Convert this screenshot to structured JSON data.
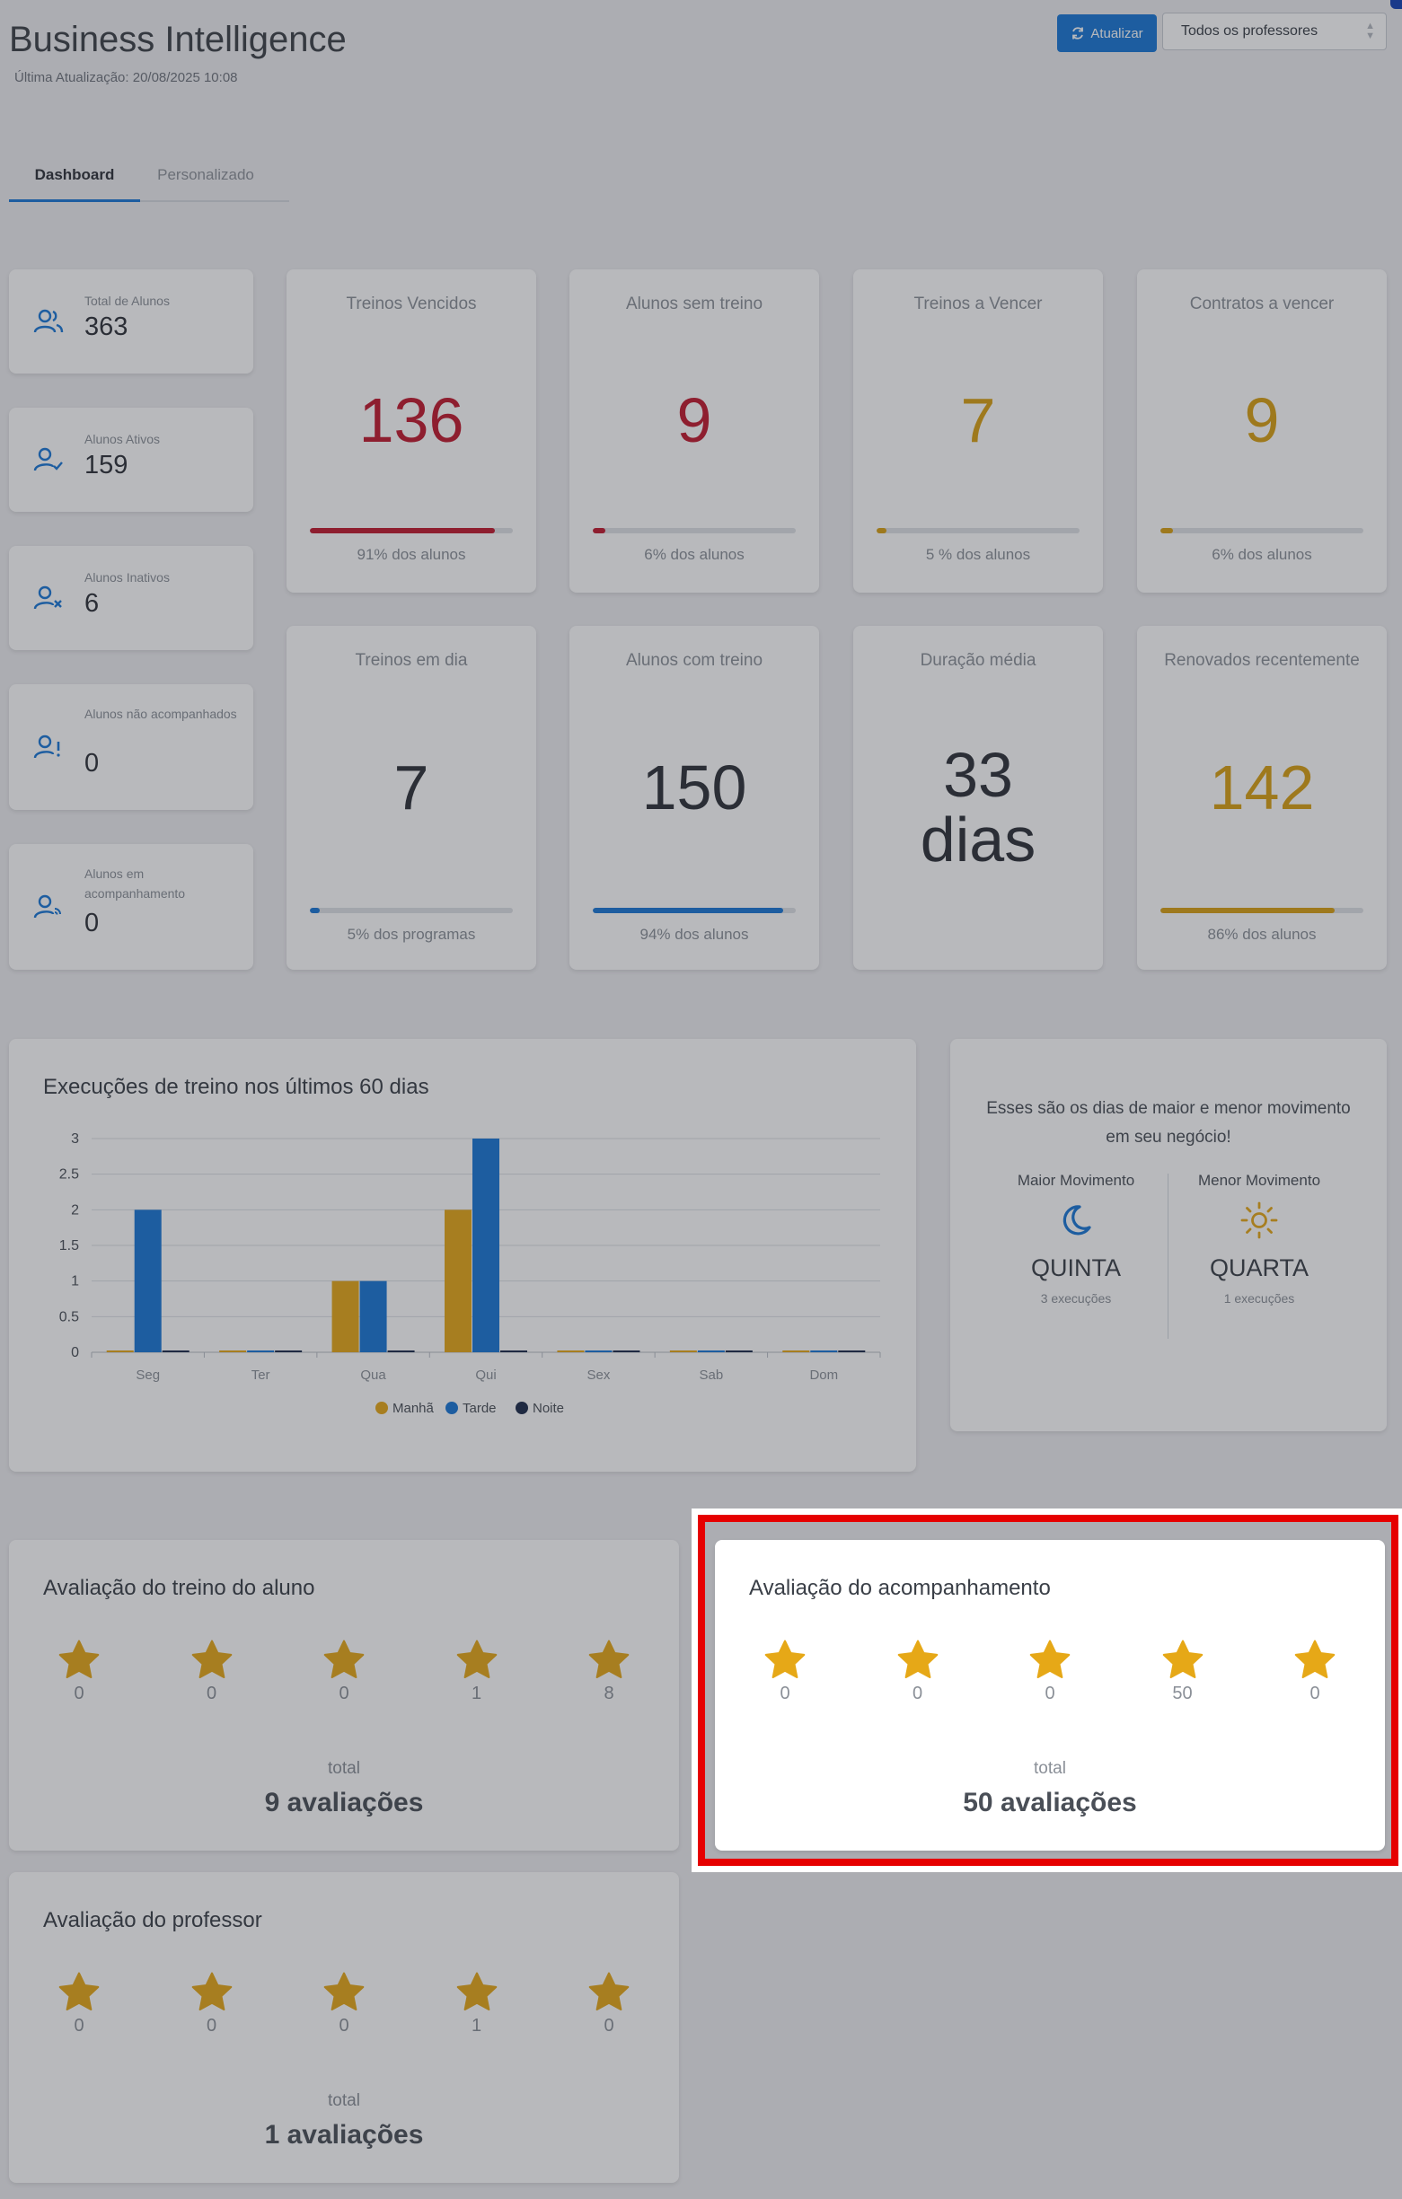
{
  "header": {
    "title": "Business Intelligence",
    "last_update": "Última Atualização: 20/08/2025 10:08",
    "refresh_label": "Atualizar",
    "professor_select": "Todos os professores"
  },
  "tabs": [
    {
      "label": "Dashboard",
      "active": true
    },
    {
      "label": "Personalizado",
      "active": false
    }
  ],
  "summary": [
    {
      "label": "Total de Alunos",
      "value": "363",
      "icon": "users-icon"
    },
    {
      "label": "Alunos Ativos",
      "value": "159",
      "icon": "user-check-icon"
    },
    {
      "label": "Alunos Inativos",
      "value": "6",
      "icon": "user-x-icon"
    },
    {
      "label": "Alunos não acompanhados",
      "value": "0",
      "icon": "user-alert-icon"
    },
    {
      "label": "Alunos em acompanhamento",
      "value": "0",
      "icon": "user-signal-icon"
    }
  ],
  "kpis": [
    {
      "title": "Treinos Vencidos",
      "value": "136",
      "footer": "91% dos alunos",
      "progress": 0.91,
      "color": "#c0182e"
    },
    {
      "title": "Alunos sem treino",
      "value": "9",
      "footer": "6% dos alunos",
      "progress": 0.06,
      "color": "#c0182e"
    },
    {
      "title": "Treinos a Vencer",
      "value": "7",
      "footer": "5 % dos alunos",
      "progress": 0.05,
      "color": "#d8a012"
    },
    {
      "title": "Contratos a vencer",
      "value": "9",
      "footer": "6% dos alunos",
      "progress": 0.06,
      "color": "#d8a012"
    },
    {
      "title": "Treinos em dia",
      "value": "7",
      "footer": "5% dos programas",
      "progress": 0.05,
      "color": "#1877d6"
    },
    {
      "title": "Alunos com treino",
      "value": "150",
      "footer": "94% dos alunos",
      "progress": 0.94,
      "color": "#1877d6"
    },
    {
      "title": "Duração média",
      "value_line1": "33",
      "value_line2": "dias"
    },
    {
      "title": "Renovados recentemente",
      "value": "142",
      "footer": "86% dos alunos",
      "progress": 0.86,
      "color": "#d8a012"
    }
  ],
  "chart": {
    "title": "Execuções de treino nos últimos 60 dias"
  },
  "chart_data": {
    "type": "bar",
    "categories": [
      "Seg",
      "Ter",
      "Qua",
      "Qui",
      "Sex",
      "Sab",
      "Dom"
    ],
    "series": [
      {
        "name": "Manhã",
        "values": [
          0,
          0,
          1,
          2,
          0,
          0,
          0
        ],
        "color": "#e6a817"
      },
      {
        "name": "Tarde",
        "values": [
          2,
          0,
          1,
          3,
          0,
          0,
          0
        ],
        "color": "#1877d6"
      },
      {
        "name": "Noite",
        "values": [
          0,
          0,
          0,
          0,
          0,
          0,
          0
        ],
        "color": "#1b2a4a"
      }
    ],
    "y_ticks": [
      "0",
      "0.5",
      "1",
      "1.5",
      "2",
      "2.5",
      "3"
    ],
    "ylim": [
      0,
      3
    ],
    "grid": true,
    "legend": "bottom"
  },
  "movement": {
    "text": "Esses são os dias de maior e menor movimento em seu negócio!",
    "max_label": "Maior Movimento",
    "max_day": "QUINTA",
    "max_exec": "3 execuções",
    "min_label": "Menor Movimento",
    "min_day": "QUARTA",
    "min_exec": "1 execuções"
  },
  "ratings": {
    "treino": {
      "title": "Avaliação do treino do aluno",
      "counts": [
        "0",
        "0",
        "0",
        "1",
        "8"
      ],
      "total_label": "total",
      "total": "9 avaliações"
    },
    "acompanhamento": {
      "title": "Avaliação do acompanhamento",
      "counts": [
        "0",
        "0",
        "0",
        "50",
        "0"
      ],
      "total_label": "total",
      "total": "50 avaliações"
    },
    "professor": {
      "title": "Avaliação do professor",
      "counts": [
        "0",
        "0",
        "0",
        "1",
        "0"
      ],
      "total_label": "total",
      "total": "1 avaliações"
    }
  },
  "colors": {
    "accent": "#1877d6",
    "danger": "#c0182e",
    "warning": "#d8a012",
    "star": "#e6a817",
    "highlight": "#e60000"
  }
}
